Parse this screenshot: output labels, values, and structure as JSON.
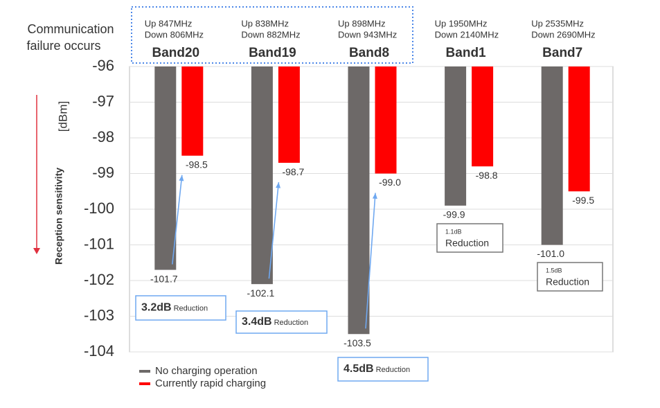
{
  "chart_data": {
    "type": "bar",
    "note": [
      "Communication",
      "failure occurs"
    ],
    "y_label": "Reception sensitivity",
    "y_unit": "[dBm]",
    "categories": [
      "Band20",
      "Band19",
      "Band8",
      "Band1",
      "Band7"
    ],
    "frequencies": [
      [
        "Up 847MHz",
        "Down 806MHz"
      ],
      [
        "Up 838MHz",
        "Down 882MHz"
      ],
      [
        "Up 898MHz",
        "Down 943MHz"
      ],
      [
        "Up 1950MHz",
        "Down 2140MHz"
      ],
      [
        "Up 2535MHz",
        "Down 2690MHz"
      ]
    ],
    "series": [
      {
        "name": "No charging operation",
        "color": "#6d6968",
        "values": [
          -101.7,
          -102.1,
          -103.5,
          -99.9,
          -101.0
        ],
        "value_labels": [
          "-101.7",
          "-102.1",
          "-103.5",
          "-99.9",
          "-101.0"
        ]
      },
      {
        "name": "Currently rapid charging",
        "color": "#ff0000",
        "values": [
          -98.5,
          -98.7,
          -99.0,
          -98.8,
          -99.5
        ],
        "value_labels": [
          "-98.5",
          "-98.7",
          "-99.0",
          "-98.8",
          "-99.5"
        ]
      }
    ],
    "reductions": [
      {
        "amount": "3.2dB",
        "label": "Reduction"
      },
      {
        "amount": "3.4dB",
        "label": "Reduction"
      },
      {
        "amount": "4.5dB",
        "label": "Reduction"
      },
      {
        "amount": "1.1dB",
        "label": "Reduction"
      },
      {
        "amount": "1.5dB",
        "label": "Reduction"
      }
    ],
    "ylim": [
      -104,
      -96
    ],
    "yticks": [
      -104,
      -103,
      -102,
      -101,
      -100,
      -99,
      -98,
      -97,
      -96
    ],
    "grid": true
  }
}
